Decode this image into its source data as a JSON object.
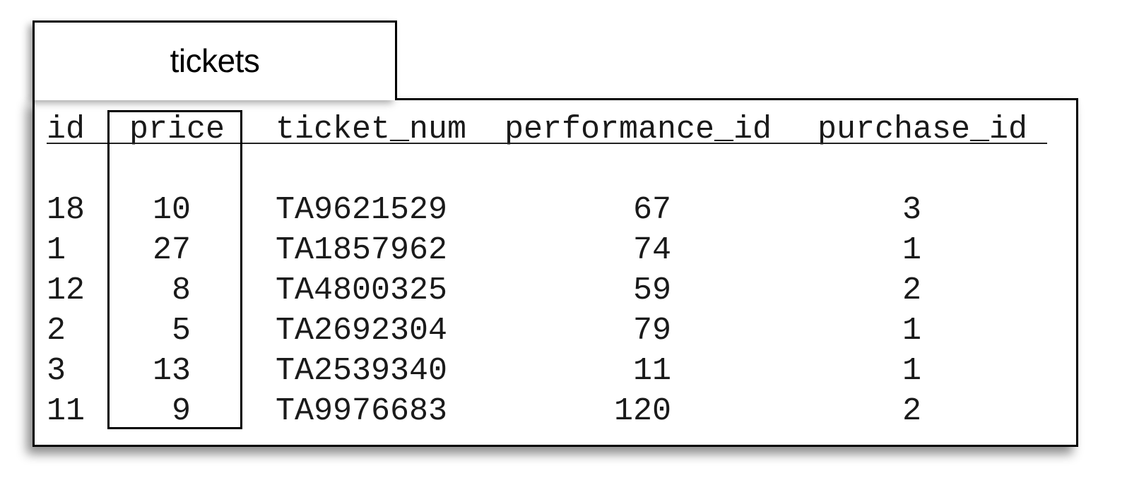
{
  "table": {
    "name": "tickets",
    "columns": [
      {
        "key": "id",
        "label": "id"
      },
      {
        "key": "price",
        "label": "price"
      },
      {
        "key": "ticket_num",
        "label": "ticket_num"
      },
      {
        "key": "performance_id",
        "label": "performance_id"
      },
      {
        "key": "purchase_id",
        "label": "purchase_id"
      }
    ],
    "rows": [
      {
        "id": "18",
        "price": "10",
        "ticket_num": "TA9621529",
        "performance_id": "67",
        "purchase_id": "3"
      },
      {
        "id": "1",
        "price": "27",
        "ticket_num": "TA1857962",
        "performance_id": "74",
        "purchase_id": "1"
      },
      {
        "id": "12",
        "price": "8",
        "ticket_num": "TA4800325",
        "performance_id": "59",
        "purchase_id": "2"
      },
      {
        "id": "2",
        "price": "5",
        "ticket_num": "TA2692304",
        "performance_id": "79",
        "purchase_id": "1"
      },
      {
        "id": "3",
        "price": "13",
        "ticket_num": "TA2539340",
        "performance_id": "11",
        "purchase_id": "1"
      },
      {
        "id": "11",
        "price": "9",
        "ticket_num": "TA9976683",
        "performance_id": "120",
        "purchase_id": "2"
      }
    ],
    "highlighted_column": "price"
  }
}
